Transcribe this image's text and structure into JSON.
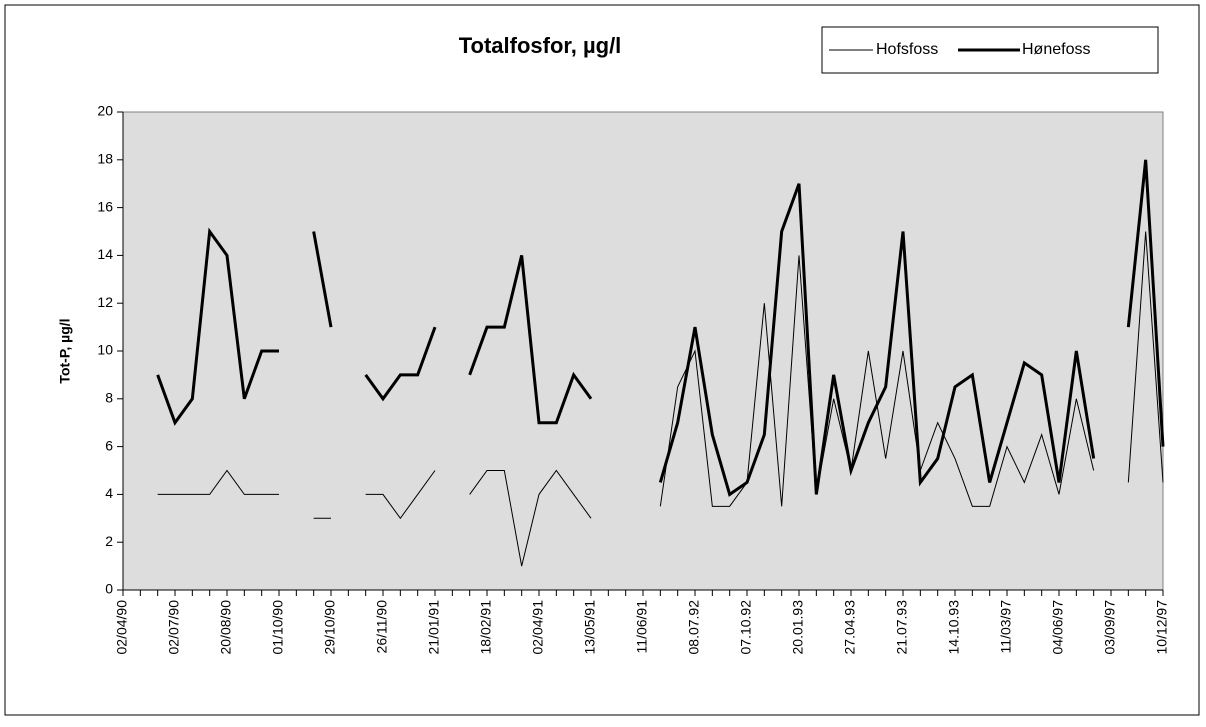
{
  "chart_data": {
    "type": "line",
    "title": "Totalfosfor, µg/l",
    "y_label": "Tot-P, µg/l",
    "categories": [
      "02/04/90",
      null,
      null,
      "02/07/90",
      null,
      null,
      "20/08/90",
      null,
      null,
      "01/10/90",
      null,
      null,
      "29/10/90",
      null,
      null,
      "26/11/90",
      null,
      null,
      "21/01/91",
      null,
      null,
      "18/02/91",
      null,
      null,
      "02/04/91",
      null,
      null,
      "13/05/91",
      null,
      null,
      "11/06/91",
      null,
      null,
      "08.07.92",
      null,
      null,
      "07.10.92",
      null,
      null,
      "20.01.93",
      null,
      null,
      "27.04.93",
      null,
      null,
      "21.07.93",
      null,
      null,
      "14.10.93",
      null,
      null,
      "11/03/97",
      null,
      null,
      "04/06/97",
      null,
      null,
      "03/09/97",
      null,
      null,
      "10/12/97"
    ],
    "series": [
      {
        "name": "Hofsfoss",
        "color": "#000000",
        "width": 1,
        "values": [
          null,
          null,
          4,
          4,
          4,
          4,
          5,
          4,
          4,
          4,
          null,
          3,
          3,
          null,
          4,
          4,
          3,
          4,
          5,
          null,
          4,
          5,
          5,
          1,
          4,
          5,
          4,
          3,
          null,
          null,
          null,
          3.5,
          8.5,
          10,
          3.5,
          3.5,
          4.5,
          12,
          3.5,
          14,
          4,
          8,
          5,
          10,
          5.5,
          10,
          5,
          7,
          5.5,
          3.5,
          3.5,
          6,
          4.5,
          6.5,
          4,
          8,
          5,
          null,
          4.5,
          15,
          4.5
        ]
      },
      {
        "name": "Hønefoss",
        "color": "#000000",
        "width": 3,
        "values": [
          null,
          null,
          9,
          7,
          8,
          15,
          14,
          8,
          10,
          10,
          null,
          15,
          11,
          null,
          9,
          8,
          9,
          9,
          11,
          null,
          9,
          11,
          11,
          14,
          7,
          7,
          9,
          8,
          null,
          null,
          null,
          4.5,
          7,
          11,
          6.5,
          4,
          4.5,
          6.5,
          15,
          17,
          4,
          9,
          5,
          7,
          8.5,
          15,
          4.5,
          5.5,
          8.5,
          9,
          4.5,
          7,
          9.5,
          9,
          4.5,
          10,
          5.5,
          null,
          11,
          18,
          6
        ]
      }
    ],
    "ylim": [
      0,
      20
    ],
    "yticks": [
      0,
      2,
      4,
      6,
      8,
      10,
      12,
      14,
      16,
      18,
      20
    ],
    "plot_background": "#dddddd"
  }
}
